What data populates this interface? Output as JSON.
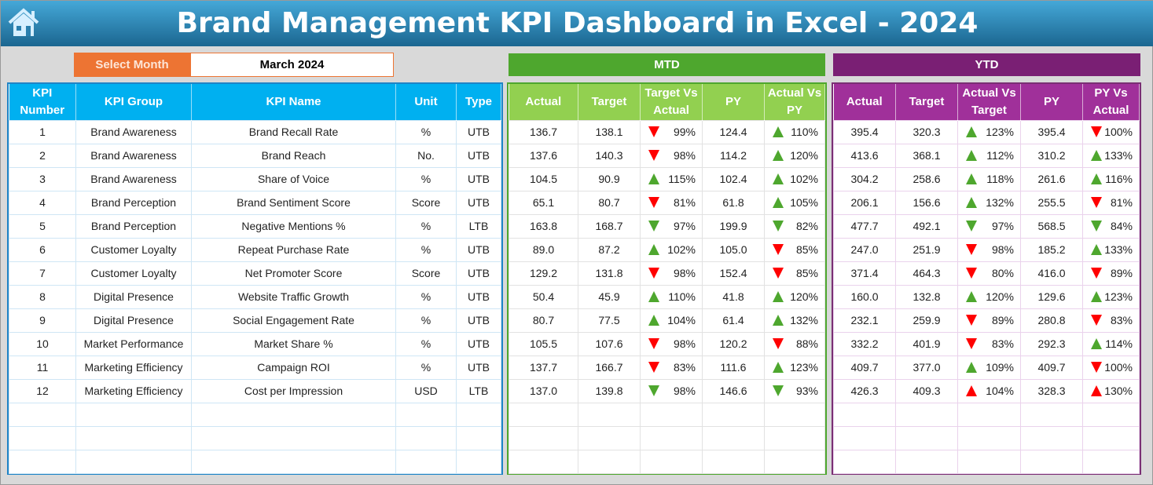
{
  "title": "Brand Management KPI Dashboard in Excel - 2024",
  "colors": {
    "green": "#4ea72e",
    "red": "#ff0000",
    "left_header": "#00b0f0",
    "mtd_header": "#92d050",
    "mtd_band": "#4ea72e",
    "ytd_header": "#a0309a",
    "ytd_band": "#7a1f74"
  },
  "selector": {
    "label": "Select Month",
    "value": "March 2024"
  },
  "bands": {
    "mtd": "MTD",
    "ytd": "YTD"
  },
  "left_headers": [
    "KPI Number",
    "KPI Group",
    "KPI Name",
    "Unit",
    "Type"
  ],
  "mtd_headers": [
    "Actual",
    "Target",
    "Target Vs Actual",
    "PY",
    "Actual Vs PY"
  ],
  "ytd_headers": [
    "Actual",
    "Target",
    "Actual Vs Target",
    "PY",
    "PY Vs Actual"
  ],
  "rows": [
    {
      "num": "1",
      "group": "Brand Awareness",
      "name": "Brand Recall Rate",
      "unit": "%",
      "type": "UTB",
      "mtd": [
        "136.7",
        "138.1",
        {
          "dir": "down",
          "color": "red",
          "pct": "99%"
        },
        "124.4",
        {
          "dir": "up",
          "color": "green",
          "pct": "110%"
        }
      ],
      "ytd": [
        "395.4",
        "320.3",
        {
          "dir": "up",
          "color": "green",
          "pct": "123%"
        },
        "395.4",
        {
          "dir": "down",
          "color": "red",
          "pct": "100%"
        }
      ]
    },
    {
      "num": "2",
      "group": "Brand Awareness",
      "name": "Brand Reach",
      "unit": "No.",
      "type": "UTB",
      "mtd": [
        "137.6",
        "140.3",
        {
          "dir": "down",
          "color": "red",
          "pct": "98%"
        },
        "114.2",
        {
          "dir": "up",
          "color": "green",
          "pct": "120%"
        }
      ],
      "ytd": [
        "413.6",
        "368.1",
        {
          "dir": "up",
          "color": "green",
          "pct": "112%"
        },
        "310.2",
        {
          "dir": "up",
          "color": "green",
          "pct": "133%"
        }
      ]
    },
    {
      "num": "3",
      "group": "Brand Awareness",
      "name": "Share of Voice",
      "unit": "%",
      "type": "UTB",
      "mtd": [
        "104.5",
        "90.9",
        {
          "dir": "up",
          "color": "green",
          "pct": "115%"
        },
        "102.4",
        {
          "dir": "up",
          "color": "green",
          "pct": "102%"
        }
      ],
      "ytd": [
        "304.2",
        "258.6",
        {
          "dir": "up",
          "color": "green",
          "pct": "118%"
        },
        "261.6",
        {
          "dir": "up",
          "color": "green",
          "pct": "116%"
        }
      ]
    },
    {
      "num": "4",
      "group": "Brand Perception",
      "name": "Brand Sentiment Score",
      "unit": "Score",
      "type": "UTB",
      "mtd": [
        "65.1",
        "80.7",
        {
          "dir": "down",
          "color": "red",
          "pct": "81%"
        },
        "61.8",
        {
          "dir": "up",
          "color": "green",
          "pct": "105%"
        }
      ],
      "ytd": [
        "206.1",
        "156.6",
        {
          "dir": "up",
          "color": "green",
          "pct": "132%"
        },
        "255.5",
        {
          "dir": "down",
          "color": "red",
          "pct": "81%"
        }
      ]
    },
    {
      "num": "5",
      "group": "Brand Perception",
      "name": "Negative Mentions %",
      "unit": "%",
      "type": "LTB",
      "mtd": [
        "163.8",
        "168.7",
        {
          "dir": "down",
          "color": "green",
          "pct": "97%"
        },
        "199.9",
        {
          "dir": "down",
          "color": "green",
          "pct": "82%"
        }
      ],
      "ytd": [
        "477.7",
        "492.1",
        {
          "dir": "down",
          "color": "green",
          "pct": "97%"
        },
        "568.5",
        {
          "dir": "down",
          "color": "green",
          "pct": "84%"
        }
      ]
    },
    {
      "num": "6",
      "group": "Customer Loyalty",
      "name": "Repeat Purchase Rate",
      "unit": "%",
      "type": "UTB",
      "mtd": [
        "89.0",
        "87.2",
        {
          "dir": "up",
          "color": "green",
          "pct": "102%"
        },
        "105.0",
        {
          "dir": "down",
          "color": "red",
          "pct": "85%"
        }
      ],
      "ytd": [
        "247.0",
        "251.9",
        {
          "dir": "down",
          "color": "red",
          "pct": "98%"
        },
        "185.2",
        {
          "dir": "up",
          "color": "green",
          "pct": "133%"
        }
      ]
    },
    {
      "num": "7",
      "group": "Customer Loyalty",
      "name": "Net Promoter Score",
      "unit": "Score",
      "type": "UTB",
      "mtd": [
        "129.2",
        "131.8",
        {
          "dir": "down",
          "color": "red",
          "pct": "98%"
        },
        "152.4",
        {
          "dir": "down",
          "color": "red",
          "pct": "85%"
        }
      ],
      "ytd": [
        "371.4",
        "464.3",
        {
          "dir": "down",
          "color": "red",
          "pct": "80%"
        },
        "416.0",
        {
          "dir": "down",
          "color": "red",
          "pct": "89%"
        }
      ]
    },
    {
      "num": "8",
      "group": "Digital Presence",
      "name": "Website Traffic Growth",
      "unit": "%",
      "type": "UTB",
      "mtd": [
        "50.4",
        "45.9",
        {
          "dir": "up",
          "color": "green",
          "pct": "110%"
        },
        "41.8",
        {
          "dir": "up",
          "color": "green",
          "pct": "120%"
        }
      ],
      "ytd": [
        "160.0",
        "132.8",
        {
          "dir": "up",
          "color": "green",
          "pct": "120%"
        },
        "129.6",
        {
          "dir": "up",
          "color": "green",
          "pct": "123%"
        }
      ]
    },
    {
      "num": "9",
      "group": "Digital Presence",
      "name": "Social Engagement Rate",
      "unit": "%",
      "type": "UTB",
      "mtd": [
        "80.7",
        "77.5",
        {
          "dir": "up",
          "color": "green",
          "pct": "104%"
        },
        "61.4",
        {
          "dir": "up",
          "color": "green",
          "pct": "132%"
        }
      ],
      "ytd": [
        "232.1",
        "259.9",
        {
          "dir": "down",
          "color": "red",
          "pct": "89%"
        },
        "280.8",
        {
          "dir": "down",
          "color": "red",
          "pct": "83%"
        }
      ]
    },
    {
      "num": "10",
      "group": "Market Performance",
      "name": "Market Share %",
      "unit": "%",
      "type": "UTB",
      "mtd": [
        "105.5",
        "107.6",
        {
          "dir": "down",
          "color": "red",
          "pct": "98%"
        },
        "120.2",
        {
          "dir": "down",
          "color": "red",
          "pct": "88%"
        }
      ],
      "ytd": [
        "332.2",
        "401.9",
        {
          "dir": "down",
          "color": "red",
          "pct": "83%"
        },
        "292.3",
        {
          "dir": "up",
          "color": "green",
          "pct": "114%"
        }
      ]
    },
    {
      "num": "11",
      "group": "Marketing Efficiency",
      "name": "Campaign ROI",
      "unit": "%",
      "type": "UTB",
      "mtd": [
        "137.7",
        "166.7",
        {
          "dir": "down",
          "color": "red",
          "pct": "83%"
        },
        "111.6",
        {
          "dir": "up",
          "color": "green",
          "pct": "123%"
        }
      ],
      "ytd": [
        "409.7",
        "377.0",
        {
          "dir": "up",
          "color": "green",
          "pct": "109%"
        },
        "409.7",
        {
          "dir": "down",
          "color": "red",
          "pct": "100%"
        }
      ]
    },
    {
      "num": "12",
      "group": "Marketing Efficiency",
      "name": "Cost per Impression",
      "unit": "USD",
      "type": "LTB",
      "mtd": [
        "137.0",
        "139.8",
        {
          "dir": "down",
          "color": "green",
          "pct": "98%"
        },
        "146.6",
        {
          "dir": "down",
          "color": "green",
          "pct": "93%"
        }
      ],
      "ytd": [
        "426.3",
        "409.3",
        {
          "dir": "up",
          "color": "red",
          "pct": "104%"
        },
        "328.3",
        {
          "dir": "up",
          "color": "red",
          "pct": "130%"
        }
      ]
    }
  ]
}
